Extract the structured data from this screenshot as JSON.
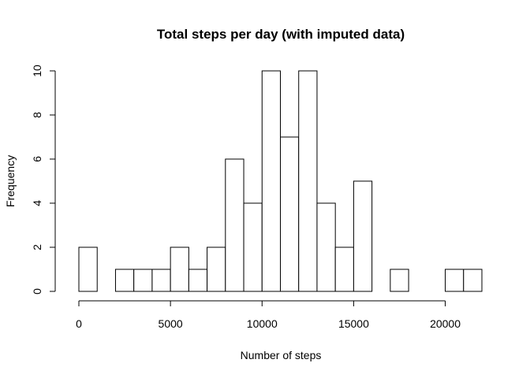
{
  "chart_data": {
    "type": "bar",
    "subtype": "histogram",
    "title": "Total steps per day (with imputed data)",
    "xlabel": "Number of steps",
    "ylabel": "Frequency",
    "bin_width": 1000,
    "bin_start": 0,
    "frequencies": [
      2,
      0,
      1,
      1,
      1,
      2,
      1,
      2,
      6,
      4,
      10,
      7,
      10,
      4,
      2,
      5,
      0,
      1,
      0,
      0,
      1,
      1
    ],
    "xlim": [
      0,
      22000
    ],
    "ylim": [
      0,
      10
    ],
    "x_ticks": [
      0,
      5000,
      10000,
      15000,
      20000
    ],
    "y_ticks": [
      0,
      2,
      4,
      6,
      8,
      10
    ],
    "grid": false,
    "legend": "none",
    "colors": {
      "bar_fill": "#ffffff",
      "bar_stroke": "#000000"
    }
  }
}
